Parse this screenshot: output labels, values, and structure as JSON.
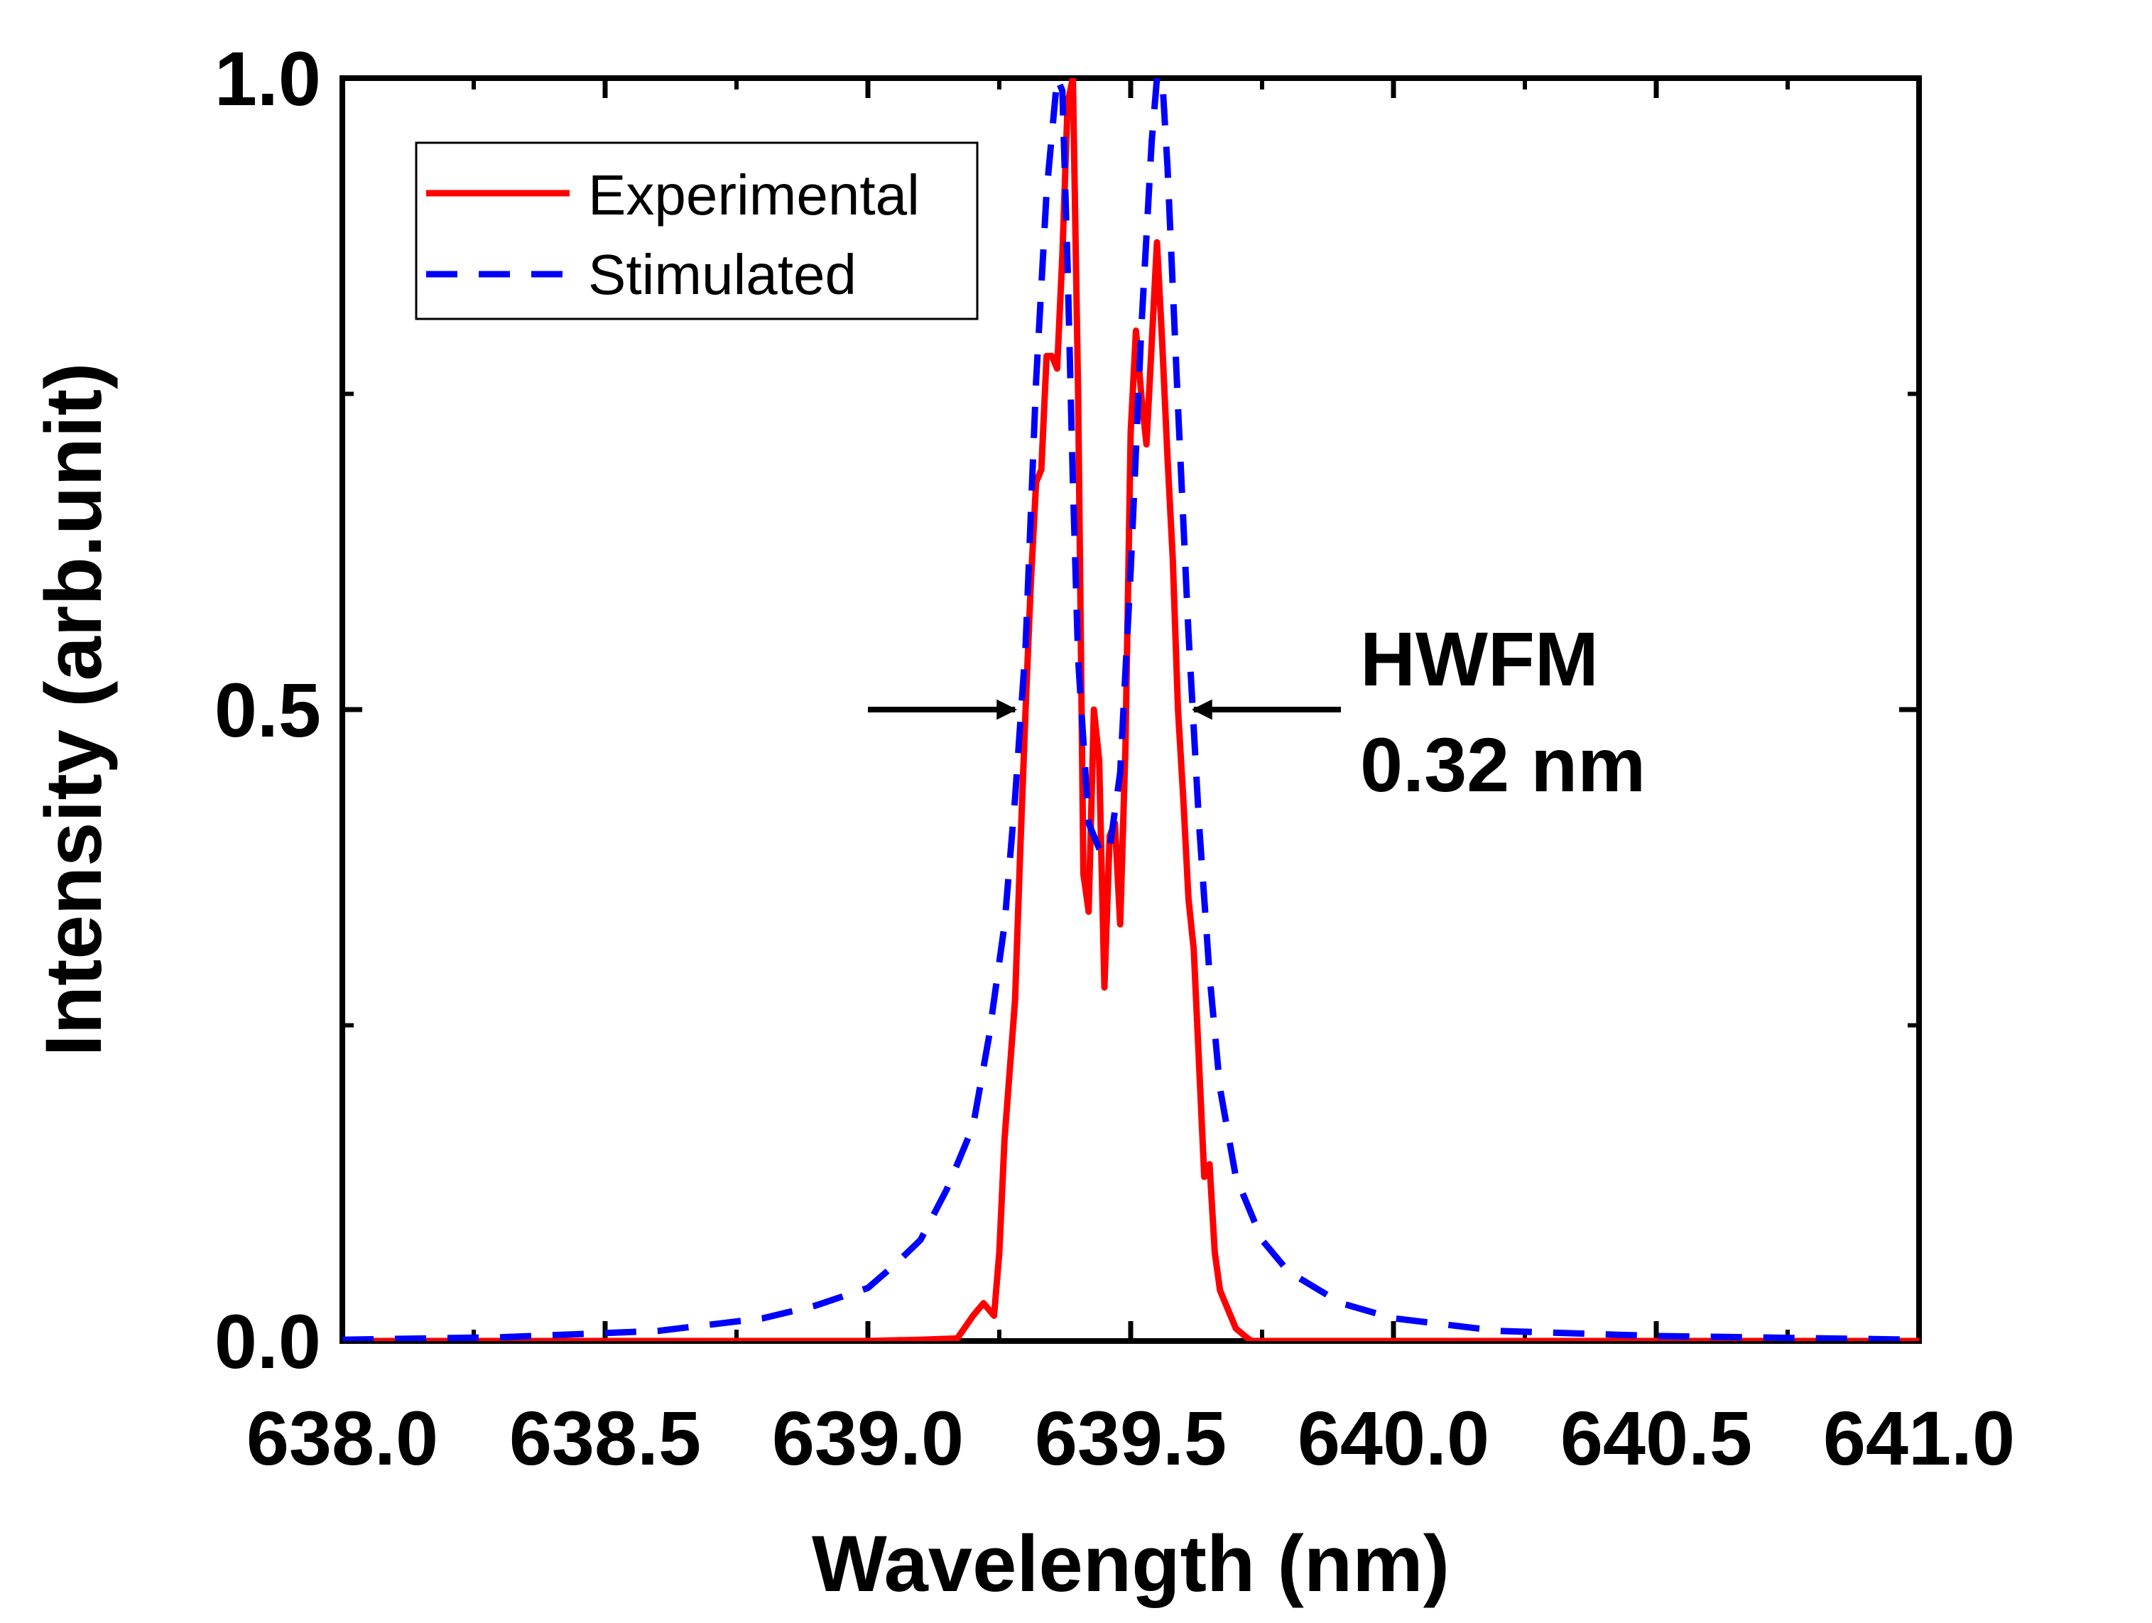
{
  "chart_data": {
    "type": "line",
    "title": "",
    "xlabel": "Wavelength (nm)",
    "ylabel": "Intensity (arb.unit)",
    "xlim": [
      638.0,
      641.0
    ],
    "ylim": [
      0.0,
      1.0
    ],
    "x_ticks": [
      638.0,
      638.5,
      639.0,
      639.5,
      640.0,
      640.5,
      641.0
    ],
    "x_tick_labels": [
      "638.0",
      "638.5",
      "639.0",
      "639.5",
      "640.0",
      "640.5",
      "641.0"
    ],
    "y_ticks": [
      0.0,
      0.5,
      1.0
    ],
    "y_tick_labels": [
      "0.0",
      "0.5",
      "1.0"
    ],
    "y_minor_ticks": [
      0.25,
      0.75
    ],
    "grid": false,
    "legend_position": "top-left",
    "series": [
      {
        "name": "Experimental",
        "color": "#ff0000",
        "style": "solid",
        "x": [
          638.0,
          638.5,
          639.0,
          639.1,
          639.17,
          639.2,
          639.22,
          639.24,
          639.25,
          639.26,
          639.28,
          639.29,
          639.3,
          639.31,
          639.32,
          639.33,
          639.34,
          639.35,
          639.36,
          639.37,
          639.38,
          639.39,
          639.4,
          639.41,
          639.42,
          639.43,
          639.44,
          639.45,
          639.46,
          639.47,
          639.48,
          639.49,
          639.5,
          639.51,
          639.52,
          639.53,
          639.54,
          639.55,
          639.56,
          639.57,
          639.58,
          639.59,
          639.6,
          639.61,
          639.62,
          639.63,
          639.64,
          639.65,
          639.66,
          639.67,
          639.69,
          639.7,
          639.72,
          639.73,
          639.75,
          640.0,
          641.0
        ],
        "y": [
          0.0,
          0.0,
          0.0,
          0.001,
          0.002,
          0.02,
          0.03,
          0.02,
          0.07,
          0.16,
          0.27,
          0.39,
          0.5,
          0.6,
          0.68,
          0.69,
          0.78,
          0.78,
          0.77,
          0.86,
          0.98,
          1.0,
          0.75,
          0.37,
          0.34,
          0.5,
          0.46,
          0.28,
          0.4,
          0.41,
          0.33,
          0.47,
          0.72,
          0.8,
          0.75,
          0.71,
          0.79,
          0.87,
          0.79,
          0.7,
          0.62,
          0.5,
          0.43,
          0.35,
          0.31,
          0.22,
          0.13,
          0.14,
          0.07,
          0.04,
          0.02,
          0.01,
          0.003,
          0.0,
          0.0,
          0.0,
          0.0
        ]
      },
      {
        "name": "Stimulated",
        "color": "#0000ff",
        "style": "dashed",
        "x": [
          638.0,
          638.3,
          638.6,
          638.8,
          638.9,
          639.0,
          639.05,
          639.1,
          639.15,
          639.2,
          639.23,
          639.26,
          639.28,
          639.3,
          639.32,
          639.34,
          639.36,
          639.37,
          639.38,
          639.39,
          639.4,
          639.42,
          639.44,
          639.45,
          639.46,
          639.48,
          639.5,
          639.52,
          639.54,
          639.55,
          639.56,
          639.57,
          639.59,
          639.61,
          639.63,
          639.65,
          639.67,
          639.7,
          639.75,
          639.8,
          639.9,
          640.0,
          640.2,
          640.5,
          641.0
        ],
        "y": [
          0.001,
          0.003,
          0.008,
          0.018,
          0.028,
          0.042,
          0.06,
          0.08,
          0.12,
          0.17,
          0.24,
          0.33,
          0.43,
          0.55,
          0.76,
          0.91,
          1.0,
          0.99,
          0.85,
          0.68,
          0.54,
          0.41,
          0.39,
          0.385,
          0.39,
          0.45,
          0.61,
          0.8,
          0.95,
          1.0,
          1.0,
          0.93,
          0.74,
          0.56,
          0.41,
          0.29,
          0.2,
          0.13,
          0.08,
          0.055,
          0.03,
          0.018,
          0.008,
          0.004,
          0.001
        ]
      }
    ],
    "annotation": {
      "line1": "HWFM",
      "line2": "0.32 nm",
      "arrow_y": 0.5,
      "left_arrow_x_start": 639.0,
      "left_arrow_x_end": 639.28,
      "right_arrow_x_start": 639.9,
      "right_arrow_x_end": 639.62,
      "color": "#000000"
    }
  }
}
